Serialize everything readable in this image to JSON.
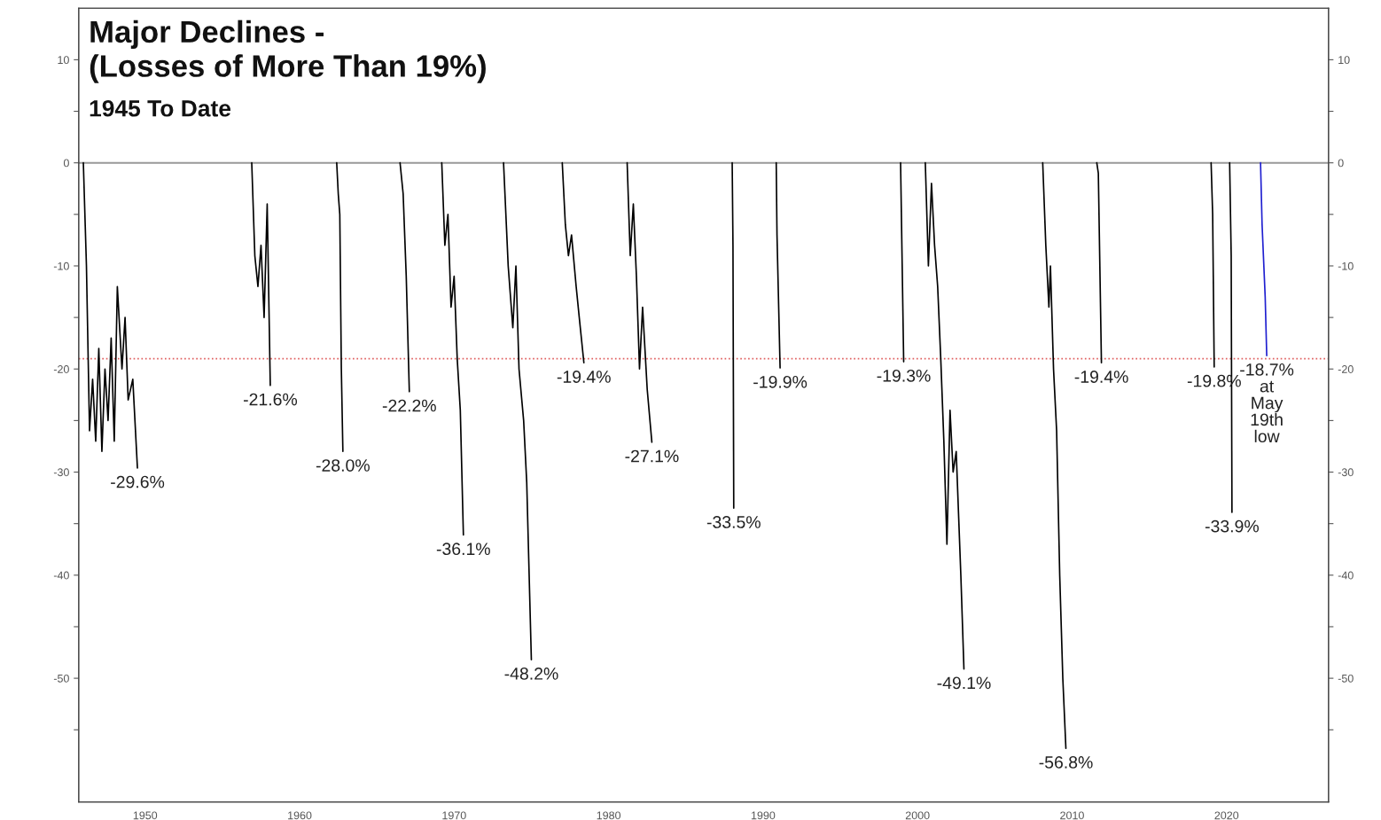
{
  "chart_data": {
    "type": "line",
    "title": "Major Declines -\n(Losses of More Than 19%)",
    "subtitle": "1945 To Date",
    "xlim": [
      1945.7,
      2026.6
    ],
    "xticks": [
      1950,
      1960,
      1970,
      1980,
      1990,
      2000,
      2010,
      2020
    ],
    "ylim": [
      -62,
      15
    ],
    "yticks": [
      10,
      {
        "value": 5,
        "label": null
      },
      0,
      {
        "value": -5,
        "label": null
      },
      -10,
      {
        "value": -15,
        "label": null
      },
      -20,
      {
        "value": -25,
        "label": null
      },
      -30,
      {
        "value": -35,
        "label": null
      },
      -40,
      {
        "value": -45,
        "label": null
      },
      -50,
      {
        "value": -55,
        "label": null
      }
    ],
    "y2lim": [
      -62,
      15
    ],
    "y2ticks": [
      10,
      {
        "value": 5,
        "label": null
      },
      0,
      {
        "value": -5,
        "label": null
      },
      -10,
      {
        "value": -15,
        "label": null
      },
      -20,
      {
        "value": -25,
        "label": null
      },
      -30,
      {
        "value": -35,
        "label": null
      },
      -40,
      {
        "value": -45,
        "label": null
      },
      -50,
      {
        "value": -55,
        "label": null
      }
    ],
    "grid": false,
    "legend": false,
    "marker": "none",
    "line_style": "solid",
    "series": [
      {
        "color": "#000000",
        "x": [
          1946.0,
          1946.2,
          1946.4,
          1946.6,
          1946.8,
          1947.0,
          1947.2,
          1947.4,
          1947.6,
          1947.8,
          1948.0,
          1948.2,
          1948.5,
          1948.7,
          1948.9,
          1949.2,
          1949.5,
          1953.0,
          1956.9,
          1957.1,
          1957.3,
          1957.5,
          1957.7,
          1957.9,
          1958.1,
          1960.0,
          1962.4,
          1962.5,
          1962.6,
          1962.7,
          1962.8,
          1964.5,
          1966.5,
          1966.7,
          1966.9,
          1967.1,
          1968.0,
          1969.2,
          1969.4,
          1969.6,
          1969.8,
          1970.0,
          1970.2,
          1970.4,
          1970.6,
          1972.0,
          1973.2,
          1973.5,
          1973.8,
          1974.0,
          1974.2,
          1974.5,
          1974.7,
          1975.0,
          1976.0,
          1977.0,
          1977.2,
          1977.4,
          1977.6,
          1977.9,
          1978.1,
          1978.4,
          1980.0,
          1981.2,
          1981.4,
          1981.6,
          1981.8,
          1982.0,
          1982.2,
          1982.5,
          1982.8,
          1985.0,
          1988.0,
          1988.05,
          1988.1,
          1989.5,
          1990.85,
          1990.9,
          1991.1,
          1995.0,
          1998.9,
          1999.1,
          1999.8,
          2000.5,
          2000.7,
          2000.9,
          2001.1,
          2001.3,
          2001.5,
          2001.7,
          2001.9,
          2002.1,
          2002.3,
          2002.5,
          2002.8,
          2003.0,
          2005.5,
          2008.1,
          2008.3,
          2008.5,
          2008.6,
          2008.8,
          2009.0,
          2009.2,
          2009.4,
          2009.6,
          2010.5,
          2011.6,
          2011.7,
          2011.9,
          2015.0,
          2019.0,
          2019.1,
          2019.2,
          2019.7,
          2020.2,
          2020.3,
          2020.35
        ],
        "values": [
          0,
          -10,
          -26,
          -21,
          -27,
          -18,
          -28,
          -20,
          -25,
          -17,
          -27,
          -12,
          -20,
          -15,
          -23,
          -21,
          -29.6,
          null,
          0,
          -9,
          -12,
          -8,
          -15,
          -4,
          -21.6,
          null,
          0,
          -3,
          -5,
          -20,
          -28.0,
          null,
          0,
          -3,
          -11,
          -22.2,
          null,
          0,
          -8,
          -5,
          -14,
          -11,
          -19,
          -24,
          -36.1,
          null,
          0,
          -10,
          -16,
          -10,
          -20,
          -25,
          -31,
          -48.2,
          null,
          0,
          -6,
          -9,
          -7,
          -12,
          -15,
          -19.4,
          null,
          0,
          -9,
          -4,
          -11,
          -20,
          -14,
          -22,
          -27.1,
          null,
          0,
          -8,
          -33.5,
          null,
          0,
          -7,
          -19.9,
          null,
          0,
          -19.3,
          null,
          0,
          -10,
          -2,
          -8,
          -12,
          -19,
          -27,
          -37,
          -24,
          -30,
          -28,
          -40,
          -49.1,
          null,
          0,
          -8,
          -14,
          -10,
          -20,
          -26,
          -40,
          -50,
          -56.8,
          null,
          0,
          -1,
          -19.4,
          null,
          0,
          -5,
          -19.8,
          null,
          0,
          -9,
          -33.9
        ]
      },
      {
        "color": "#1f1fd0",
        "x": [
          2022.2,
          2022.3,
          2022.5,
          2022.6
        ],
        "values": [
          0,
          -6,
          -13,
          -18.7
        ]
      }
    ],
    "ref_lines": [
      {
        "axis": "y",
        "value": 0,
        "color": "#999999",
        "line_style": "solid"
      },
      {
        "axis": "y",
        "value": -19,
        "color": "#e06060",
        "line_style": "dotted"
      }
    ],
    "annotations": [
      {
        "text": "-29.6%",
        "x": 1949.5,
        "y": -29.6
      },
      {
        "text": "-21.6%",
        "x": 1958.1,
        "y": -21.6
      },
      {
        "text": "-28.0%",
        "x": 1962.8,
        "y": -28.0
      },
      {
        "text": "-22.2%",
        "x": 1967.1,
        "y": -22.2
      },
      {
        "text": "-36.1%",
        "x": 1970.6,
        "y": -36.1
      },
      {
        "text": "-48.2%",
        "x": 1975.0,
        "y": -48.2
      },
      {
        "text": "-19.4%",
        "x": 1978.4,
        "y": -19.4
      },
      {
        "text": "-27.1%",
        "x": 1982.8,
        "y": -27.1
      },
      {
        "text": "-33.5%",
        "x": 1988.1,
        "y": -33.5
      },
      {
        "text": "-19.9%",
        "x": 1991.1,
        "y": -19.9
      },
      {
        "text": "-19.3%",
        "x": 1999.1,
        "y": -19.3
      },
      {
        "text": "-49.1%",
        "x": 2003.0,
        "y": -49.1
      },
      {
        "text": "-56.8%",
        "x": 2009.6,
        "y": -56.8
      },
      {
        "text": "-19.4%",
        "x": 2011.9,
        "y": -19.4
      },
      {
        "text": "-19.8%",
        "x": 2019.2,
        "y": -19.8
      },
      {
        "text": "-33.9%",
        "x": 2020.35,
        "y": -33.9
      },
      {
        "text": "-18.7%\nat\nMay\n19th\nlow",
        "x": 2022.6,
        "y": -18.7
      }
    ]
  }
}
